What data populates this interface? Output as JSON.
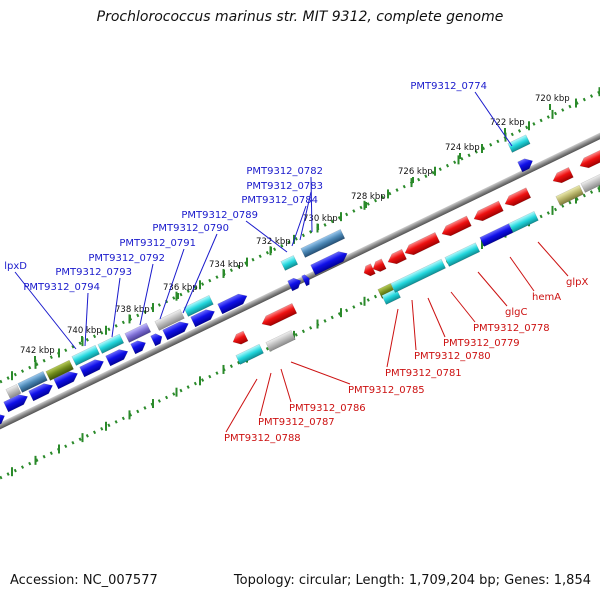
{
  "title": "Prochlorococcus marinus str. MIT 9312, complete genome",
  "footer": {
    "accession": "Accession: NC_007577",
    "summary": "Topology: circular; Length: 1,709,204 bp; Genes: 1,854"
  },
  "scale_labels": [
    "720 kbp",
    "722 kbp",
    "724 kbp",
    "726 kbp",
    "728 kbp",
    "730 kbp",
    "732 kbp",
    "734 kbp",
    "736 kbp",
    "738 kbp",
    "740 kbp",
    "742 kbp"
  ],
  "forward_genes": [
    "PMT9312_0774",
    "PMT9312_0782",
    "PMT9312_0783",
    "PMT9312_0784",
    "PMT9312_0789",
    "PMT9312_0790",
    "PMT9312_0791",
    "PMT9312_0792",
    "PMT9312_0793",
    "PMT9312_0794",
    "lpxD"
  ],
  "reverse_genes": [
    "glpX",
    "hemA",
    "glgC",
    "PMT9312_0778",
    "PMT9312_0779",
    "PMT9312_0780",
    "PMT9312_0781",
    "PMT9312_0785",
    "PMT9312_0786",
    "PMT9312_0787",
    "PMT9312_0788"
  ],
  "colors": {
    "forward_label": "#1a1acc",
    "reverse_label": "#cc1111",
    "backbone": "#808080",
    "ticks": "#2a8a2a",
    "blue": "#0a0ae0",
    "red": "#ee1111",
    "cyan": "#22d6dc",
    "teal": "#2bbfc7",
    "gray": "#bbbbbb",
    "olive": "#6f8a1a",
    "khaki": "#b8b46a",
    "purple": "#7d6ed4",
    "steel": "#4a86b4"
  }
}
